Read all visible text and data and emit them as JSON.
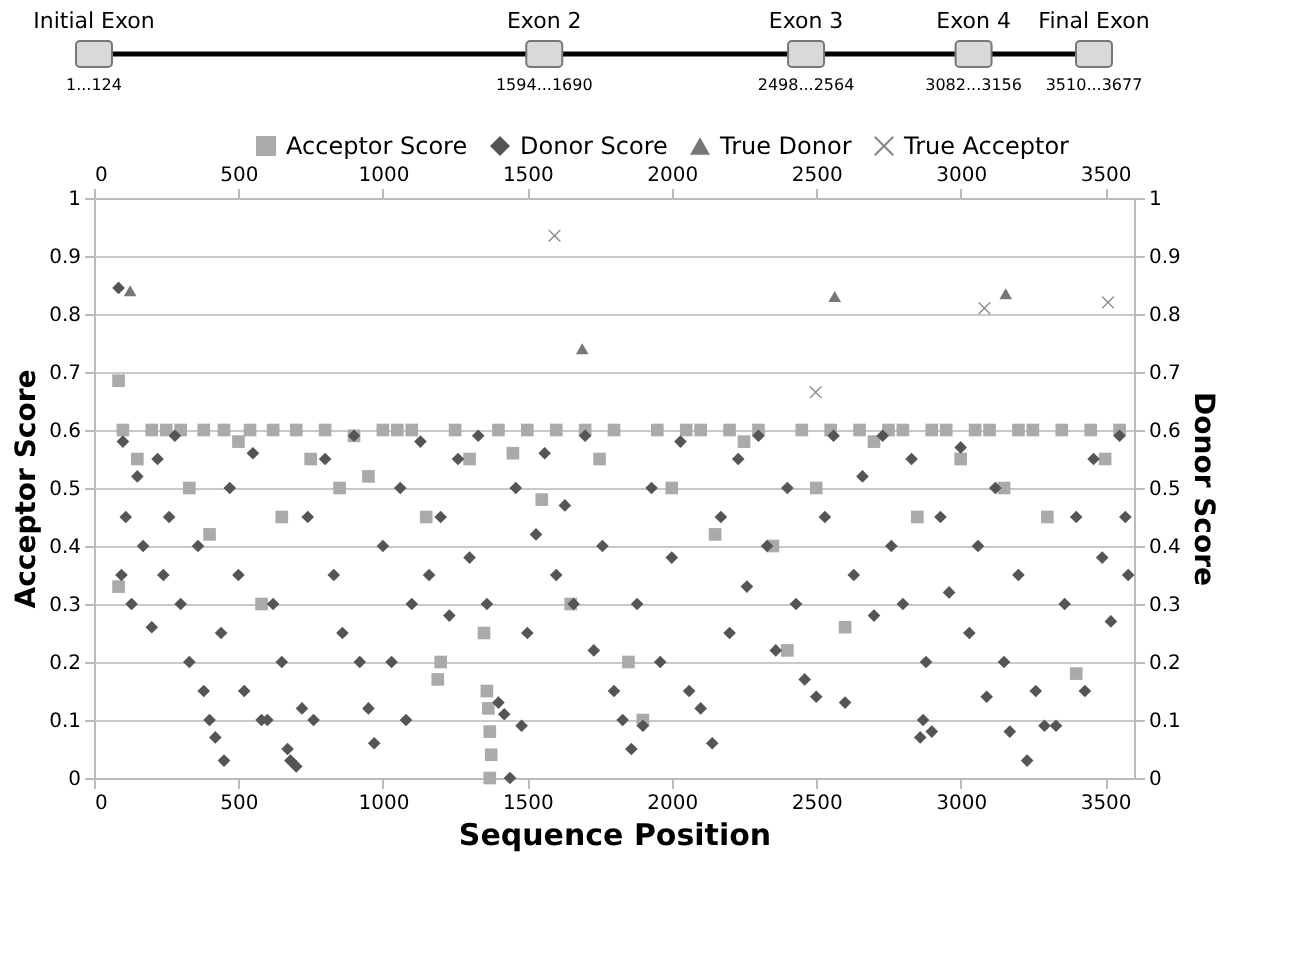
{
  "chart_data": [
    {
      "type": "other",
      "categories": [
        "Initial Exon",
        "Exon 2",
        "Exon 3",
        "Exon 4",
        "Final Exon"
      ],
      "value_labels": [
        "1...124",
        "1594...1690",
        "2498...2564",
        "3082...3156",
        "3510...3677"
      ],
      "color": "#d9d9d9"
    },
    {
      "type": "scatter",
      "xlabel": "Sequence Position",
      "ylabel": "Acceptor Score",
      "y2label": "Donor Score",
      "xlim": [
        0,
        3600
      ],
      "xticks": [
        0,
        500,
        1000,
        1500,
        2000,
        2500,
        3000,
        3500
      ],
      "x2lim": [
        0,
        3600
      ],
      "x2ticks": [
        0,
        500,
        1000,
        1500,
        2000,
        2500,
        3000,
        3500
      ],
      "ylim": [
        0,
        1
      ],
      "yticks": [
        0,
        0.1,
        0.2,
        0.3,
        0.4,
        0.5,
        0.6,
        0.7,
        0.8,
        0.9,
        1
      ],
      "y2lim": [
        0,
        1
      ],
      "y2ticks": [
        0,
        0.1,
        0.2,
        0.3,
        0.4,
        0.5,
        0.6,
        0.7,
        0.8,
        0.9,
        1
      ],
      "grid": "y",
      "legend": "top",
      "series": [
        {
          "name": "Acceptor Score",
          "color": "#aaaaaa",
          "marker": "square",
          "x": [
            85,
            85,
            100,
            150,
            200,
            250,
            300,
            330,
            380,
            400,
            450,
            500,
            540,
            580,
            620,
            650,
            700,
            750,
            800,
            850,
            900,
            950,
            1000,
            1050,
            1100,
            1150,
            1190,
            1200,
            1250,
            1300,
            1350,
            1360,
            1365,
            1370,
            1375,
            1370,
            1400,
            1450,
            1500,
            1550,
            1600,
            1650,
            1700,
            1750,
            1800,
            1850,
            1900,
            1950,
            2000,
            2050,
            2100,
            2150,
            2200,
            2250,
            2300,
            2350,
            2400,
            2450,
            2500,
            2550,
            2600,
            2650,
            2700,
            2750,
            2800,
            2850,
            2900,
            2950,
            3000,
            3050,
            3100,
            3150,
            3200,
            3250,
            3300,
            3350,
            3400,
            3450,
            3500,
            3550
          ],
          "values": [
            0.685,
            0.33,
            0.6,
            0.55,
            0.6,
            0.6,
            0.6,
            0.5,
            0.6,
            0.42,
            0.6,
            0.58,
            0.6,
            0.3,
            0.6,
            0.45,
            0.6,
            0.55,
            0.6,
            0.5,
            0.59,
            0.52,
            0.6,
            0.6,
            0.6,
            0.45,
            0.17,
            0.2,
            0.6,
            0.55,
            0.25,
            0.15,
            0.12,
            0.08,
            0.04,
            0,
            0.6,
            0.56,
            0.6,
            0.48,
            0.6,
            0.3,
            0.6,
            0.55,
            0.6,
            0.2,
            0.1,
            0.6,
            0.5,
            0.6,
            0.6,
            0.42,
            0.6,
            0.58,
            0.6,
            0.4,
            0.22,
            0.6,
            0.5,
            0.6,
            0.26,
            0.6,
            0.58,
            0.6,
            0.6,
            0.45,
            0.6,
            0.6,
            0.55,
            0.6,
            0.6,
            0.5,
            0.6,
            0.6,
            0.45,
            0.6,
            0.18,
            0.6,
            0.55,
            0.6
          ]
        },
        {
          "name": "Donor Score",
          "color": "#555555",
          "marker": "diamond",
          "axis": "y2",
          "x": [
            85,
            95,
            100,
            110,
            130,
            150,
            170,
            200,
            220,
            240,
            260,
            280,
            300,
            330,
            360,
            380,
            400,
            420,
            440,
            450,
            470,
            500,
            520,
            550,
            580,
            600,
            620,
            650,
            670,
            680,
            700,
            720,
            740,
            760,
            800,
            830,
            860,
            900,
            920,
            950,
            970,
            1000,
            1030,
            1060,
            1080,
            1100,
            1130,
            1160,
            1200,
            1230,
            1260,
            1300,
            1330,
            1360,
            1400,
            1420,
            1440,
            1460,
            1480,
            1500,
            1530,
            1560,
            1600,
            1630,
            1660,
            1700,
            1730,
            1760,
            1800,
            1830,
            1860,
            1880,
            1900,
            1930,
            1960,
            2000,
            2030,
            2060,
            2100,
            2140,
            2170,
            2200,
            2230,
            2260,
            2300,
            2330,
            2360,
            2400,
            2430,
            2460,
            2500,
            2530,
            2560,
            2600,
            2630,
            2660,
            2700,
            2730,
            2760,
            2800,
            2830,
            2860,
            2870,
            2880,
            2900,
            2930,
            2960,
            3000,
            3030,
            3060,
            3090,
            3120,
            3150,
            3170,
            3200,
            3230,
            3260,
            3290,
            3330,
            3360,
            3400,
            3430,
            3460,
            3490,
            3520,
            3550,
            3570,
            3580
          ],
          "values": [
            0.845,
            0.35,
            0.58,
            0.45,
            0.3,
            0.52,
            0.4,
            0.26,
            0.55,
            0.35,
            0.45,
            0.59,
            0.3,
            0.2,
            0.4,
            0.15,
            0.1,
            0.07,
            0.25,
            0.03,
            0.5,
            0.35,
            0.15,
            0.56,
            0.1,
            0.1,
            0.3,
            0.2,
            0.05,
            0.03,
            0.02,
            0.12,
            0.45,
            0.1,
            0.55,
            0.35,
            0.25,
            0.59,
            0.2,
            0.12,
            0.06,
            0.4,
            0.2,
            0.5,
            0.1,
            0.3,
            0.58,
            0.35,
            0.45,
            0.28,
            0.55,
            0.38,
            0.59,
            0.3,
            0.13,
            0.11,
            0,
            0.5,
            0.09,
            0.25,
            0.42,
            0.56,
            0.35,
            0.47,
            0.3,
            0.59,
            0.22,
            0.4,
            0.15,
            0.1,
            0.05,
            0.3,
            0.09,
            0.5,
            0.2,
            0.38,
            0.58,
            0.15,
            0.12,
            0.06,
            0.45,
            0.25,
            0.55,
            0.33,
            0.59,
            0.4,
            0.22,
            0.5,
            0.3,
            0.17,
            0.14,
            0.45,
            0.59,
            0.13,
            0.35,
            0.52,
            0.28,
            0.59,
            0.4,
            0.3,
            0.55,
            0.07,
            0.1,
            0.2,
            0.08,
            0.45,
            0.32,
            0.57,
            0.25,
            0.4,
            0.14,
            0.5,
            0.2,
            0.08,
            0.35,
            0.03,
            0.15,
            0.09,
            0.09,
            0.3,
            0.45,
            0.15,
            0.55,
            0.38,
            0.27,
            0.59,
            0.45,
            0.35
          ]
        },
        {
          "name": "True Donor",
          "color": "#777777",
          "marker": "triangle",
          "axis": "y2",
          "x": [
            125,
            1690,
            2564,
            3156
          ],
          "values": [
            0.84,
            0.74,
            0.83,
            0.835
          ]
        },
        {
          "name": "True Acceptor",
          "color": "#888888",
          "marker": "cross",
          "x": [
            1594,
            2498,
            3082,
            3510
          ],
          "values": [
            0.935,
            0.665,
            0.81,
            0.82
          ]
        }
      ]
    }
  ]
}
